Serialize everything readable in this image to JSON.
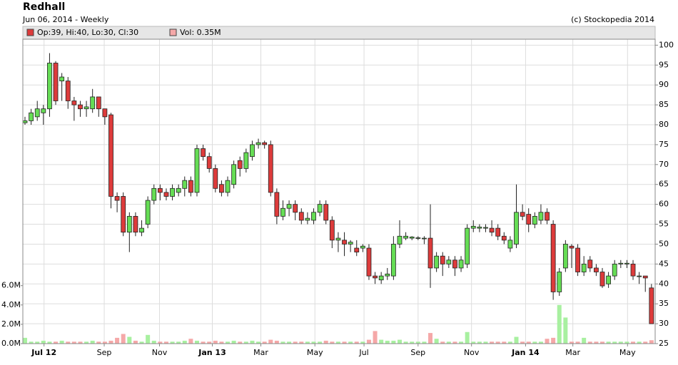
{
  "chart_data": {
    "type": "candlestick",
    "title": "Redhall",
    "subtitle": "Jun 06, 2014 - Weekly",
    "credit": "(c) Stockopedia 2014",
    "legend": [
      "Op:39, Hi:40, Lo:30, Cl:30",
      "Vol: 0.35M"
    ],
    "up_color": "#66dd55",
    "down_color": "#dd3b3b",
    "volume_up_color": "#a8f0a0",
    "volume_down_color": "#f5a8a8",
    "grid": true,
    "open": [
      80.5,
      81,
      82,
      83,
      84,
      95.5,
      91,
      91,
      86,
      85,
      84,
      84,
      87,
      84,
      82.5,
      62,
      62,
      53,
      57,
      53,
      55,
      61,
      64,
      63,
      62,
      63,
      64,
      66,
      63,
      74,
      72,
      69,
      65,
      63,
      65,
      71,
      69,
      72,
      75,
      75.5,
      75,
      63,
      57,
      59,
      60,
      58,
      56,
      56,
      58,
      60,
      56,
      51,
      51,
      50,
      49,
      49,
      49,
      42,
      41,
      42,
      42,
      50,
      51.5,
      51.5,
      51.5,
      51.5,
      51.5,
      44,
      47,
      45,
      46,
      44,
      45,
      54,
      54,
      54,
      54,
      54,
      52,
      49,
      50,
      58,
      57.5,
      55,
      56,
      58,
      55,
      38,
      44,
      49.5,
      49,
      43,
      46,
      44,
      43,
      40,
      42,
      45,
      45,
      45,
      42,
      42,
      39
    ],
    "high": [
      82,
      84,
      86,
      85,
      98,
      96,
      93,
      92,
      87,
      86,
      86,
      89,
      87,
      84,
      83,
      63,
      63,
      58,
      58,
      56,
      62,
      65,
      65,
      64,
      65,
      65,
      67,
      67,
      75,
      75,
      73,
      70,
      66,
      67,
      71,
      72,
      74,
      76,
      76.5,
      76,
      76,
      64,
      61,
      61,
      61,
      59,
      58,
      59,
      61,
      61,
      57,
      53,
      53,
      51,
      51,
      50,
      50,
      43,
      43,
      44,
      52,
      56,
      53,
      52,
      52,
      52,
      60,
      48,
      48,
      47,
      47,
      47,
      55,
      56,
      55,
      55,
      56,
      55,
      53,
      52,
      65,
      60,
      59,
      58,
      60,
      59,
      56,
      44,
      51,
      50,
      50,
      47,
      47,
      45,
      44,
      43,
      46,
      46,
      46,
      46,
      43,
      42,
      40
    ],
    "low": [
      80,
      80,
      81,
      80,
      82,
      85,
      86,
      84,
      81,
      82,
      82,
      83,
      82,
      80,
      59,
      58,
      52,
      48,
      52,
      52,
      54,
      60,
      61,
      61,
      61,
      62,
      62,
      62,
      62,
      71,
      68,
      63,
      62,
      62,
      64,
      67,
      68,
      71,
      74,
      74,
      62,
      55,
      56,
      57,
      56,
      55,
      55,
      55,
      57,
      55,
      49,
      48,
      47,
      48,
      47,
      48,
      41,
      40,
      40,
      41,
      41,
      49,
      51,
      51,
      51,
      50,
      39,
      43,
      42,
      44,
      42,
      43,
      44,
      53,
      53,
      53,
      52,
      51,
      50,
      48,
      49,
      56,
      53,
      54,
      55,
      55,
      36,
      37,
      43,
      44,
      42,
      42,
      43,
      42,
      39,
      39,
      41,
      44,
      44,
      41,
      40,
      38,
      30
    ],
    "close": [
      81,
      83,
      84,
      84,
      95.5,
      86,
      92,
      86,
      85,
      84,
      84.5,
      87,
      84,
      82,
      62,
      61,
      53,
      57,
      53,
      54,
      61,
      64,
      63,
      62,
      64,
      64,
      66,
      63,
      74,
      72,
      69,
      64,
      63,
      66,
      70,
      69,
      73,
      75,
      75.5,
      75,
      63,
      57,
      59,
      60,
      58,
      56,
      56.5,
      58,
      60,
      56,
      51,
      51.5,
      50,
      50.5,
      48,
      49.5,
      42,
      41.5,
      42,
      42.5,
      50,
      52,
      52,
      51.8,
      51.6,
      51.5,
      44,
      47,
      45,
      46,
      44,
      46,
      54,
      54.5,
      54.3,
      54.2,
      53,
      52,
      51,
      51,
      58,
      57,
      55,
      57,
      58,
      56,
      38,
      43,
      50,
      49,
      43,
      45,
      44,
      43,
      39.5,
      42,
      45,
      45.2,
      45.2,
      42,
      42,
      41.5,
      30
    ],
    "volume": [
      0.6,
      0.2,
      0.2,
      0.3,
      0.2,
      0.2,
      0.3,
      0.2,
      0.2,
      0.2,
      0.2,
      0.3,
      0.2,
      0.2,
      0.3,
      0.6,
      1.0,
      0.7,
      0.3,
      0.2,
      0.9,
      0.3,
      0.2,
      0.2,
      0.2,
      0.2,
      0.3,
      0.5,
      0.3,
      0.2,
      0.2,
      0.3,
      0.2,
      0.2,
      0.3,
      0.2,
      0.2,
      0.3,
      0.2,
      0.2,
      0.4,
      0.3,
      0.2,
      0.2,
      0.2,
      0.2,
      0.2,
      0.2,
      0.2,
      0.3,
      0.2,
      0.2,
      0.2,
      0.2,
      0.2,
      0.2,
      0.4,
      1.3,
      0.4,
      0.3,
      0.3,
      0.4,
      0.2,
      0.2,
      0.2,
      0.2,
      1.1,
      0.5,
      0.2,
      0.2,
      0.2,
      0.2,
      1.2,
      0.2,
      0.2,
      0.2,
      0.2,
      0.2,
      0.2,
      0.2,
      0.7,
      0.2,
      0.2,
      0.2,
      0.2,
      0.5,
      0.6,
      4.0,
      2.7,
      0.2,
      0.2,
      0.6,
      0.2,
      0.2,
      0.2,
      0.2,
      0.2,
      0.2,
      0.2,
      0.2,
      0.2,
      0.2,
      0.35
    ],
    "ylim": [
      25,
      101.5
    ],
    "yticks": [
      25,
      30,
      35,
      40,
      45,
      50,
      55,
      60,
      65,
      70,
      75,
      80,
      85,
      90,
      95,
      100
    ],
    "y2lim": [
      0,
      31.5
    ],
    "y2ticks": [
      {
        "value": 0,
        "label": "0.0M"
      },
      {
        "value": 2,
        "label": "2.0M"
      },
      {
        "value": 4,
        "label": "4.0M"
      },
      {
        "value": 6,
        "label": "6.0M"
      }
    ],
    "xlim": [
      -0.35,
      102.6
    ],
    "xticks": [
      {
        "value": 3.1,
        "label": "Jul 12",
        "major": true
      },
      {
        "value": 12.9,
        "label": "Sep"
      },
      {
        "value": 21.9,
        "label": "Nov"
      },
      {
        "value": 30.5,
        "label": "Jan 13",
        "major": true
      },
      {
        "value": 38.4,
        "label": "Mar"
      },
      {
        "value": 47.2,
        "label": "May"
      },
      {
        "value": 55.2,
        "label": "Jul"
      },
      {
        "value": 64,
        "label": "Sep"
      },
      {
        "value": 72.7,
        "label": "Nov"
      },
      {
        "value": 81.5,
        "label": "Jan 14",
        "major": true
      },
      {
        "value": 89.2,
        "label": "Mar"
      },
      {
        "value": 98.1,
        "label": "May"
      }
    ]
  }
}
